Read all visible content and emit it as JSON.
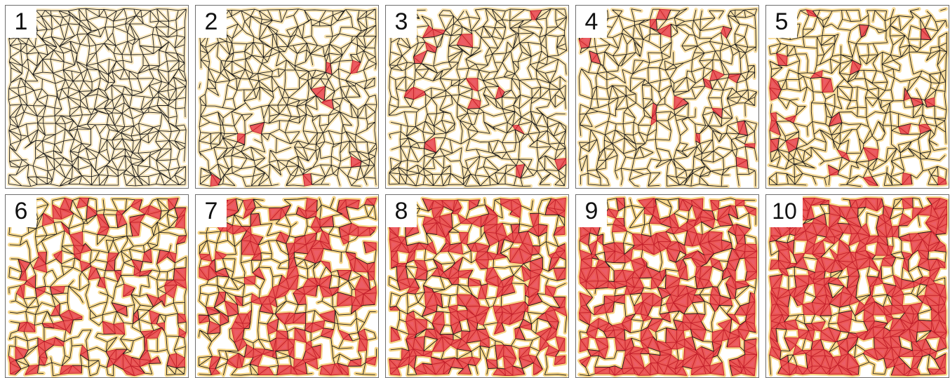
{
  "panels": [
    {
      "label": "1",
      "red_fraction": 0.0,
      "yellow_fraction": 0.18
    },
    {
      "label": "2",
      "red_fraction": 0.03,
      "yellow_fraction": 0.35
    },
    {
      "label": "3",
      "red_fraction": 0.04,
      "yellow_fraction": 0.4
    },
    {
      "label": "4",
      "red_fraction": 0.05,
      "yellow_fraction": 0.5
    },
    {
      "label": "5",
      "red_fraction": 0.1,
      "yellow_fraction": 0.6
    },
    {
      "label": "6",
      "red_fraction": 0.22,
      "yellow_fraction": 0.62
    },
    {
      "label": "7",
      "red_fraction": 0.38,
      "yellow_fraction": 0.55
    },
    {
      "label": "8",
      "red_fraction": 0.5,
      "yellow_fraction": 0.45
    },
    {
      "label": "9",
      "red_fraction": 0.58,
      "yellow_fraction": 0.38
    },
    {
      "label": "10",
      "red_fraction": 0.64,
      "yellow_fraction": 0.33
    }
  ],
  "colors": {
    "edge": "#1c1c1c",
    "yellow": "#f6d27c",
    "red": "#e8414b",
    "red_edge": "#c21e2a",
    "border": "#6e6e6e",
    "background": "#ffffff"
  }
}
